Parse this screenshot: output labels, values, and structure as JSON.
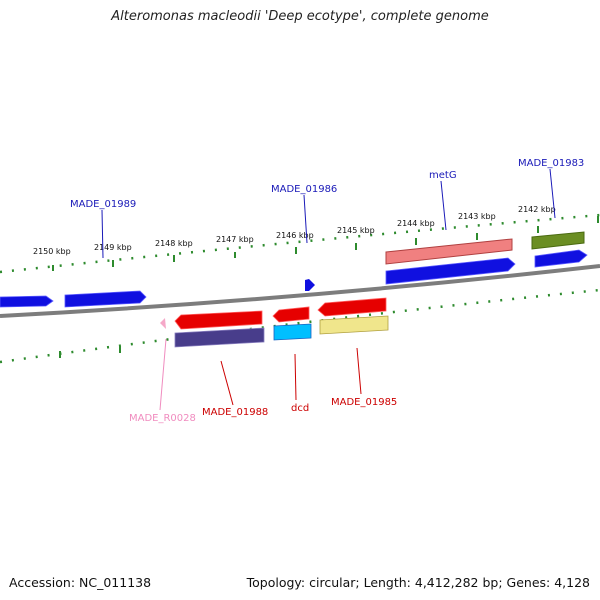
{
  "title": "Alteromonas macleodii 'Deep ecotype', complete genome",
  "accession": "Accession: NC_011138",
  "meta": "Topology: circular; Length: 4,412,282 bp; Genes: 4,128",
  "scale_labels": [
    "2150 kbp",
    "2149 kbp",
    "2148 kbp",
    "2147 kbp",
    "2146 kbp",
    "2145 kbp",
    "2144 kbp",
    "2143 kbp",
    "2142 kbp"
  ],
  "gene_labels": {
    "made_01989": "MADE_01989",
    "made_01986": "MADE_01986",
    "metg": "metG",
    "made_01983": "MADE_01983",
    "made_r0028": "MADE_R0028",
    "made_01988": "MADE_01988",
    "dcd": "dcd",
    "made_01985": "MADE_01985"
  },
  "colors": {
    "backbone": "#808080",
    "tick": "#2e8b2e",
    "label_blue": "#1a1ab8",
    "label_red": "#cc0000",
    "label_pink": "#f08cbf"
  }
}
